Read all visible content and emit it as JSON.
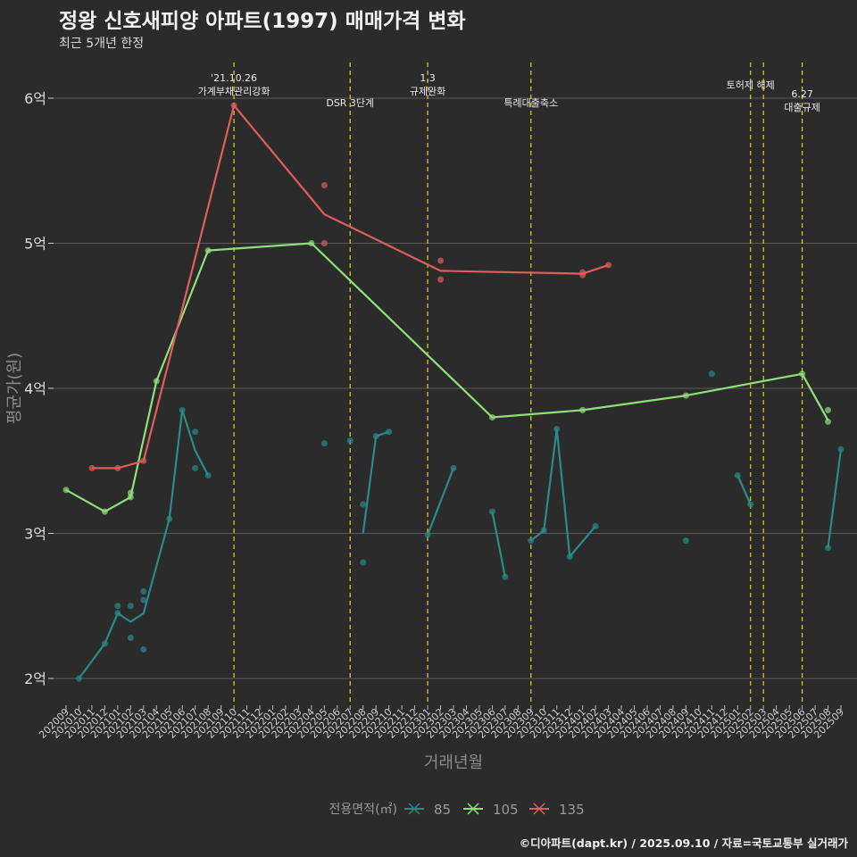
{
  "title": "정왕 신호새피양 아파트(1997) 매매가격 변화",
  "subtitle": "최근 5개년 한정",
  "caption": "©디아파트(dapt.kr) / 2025.09.10 / 자료=국토교통부 실거래가",
  "colors": {
    "background": "#2b2b2b",
    "s85": "#2a8a8a",
    "s105": "#90e07a",
    "s135": "#e05d5d",
    "event": "#d8d81e",
    "grid": "#5a5a5a"
  },
  "chart_data": {
    "type": "line",
    "title": "정왕 신호새피양 아파트(1997) 매매가격 변화",
    "xlabel": "거래년월",
    "ylabel": "평균가(원)",
    "ylim": [
      1.8,
      6.3
    ],
    "y_ticks": [
      2,
      3,
      4,
      5,
      6
    ],
    "y_tick_labels": [
      "2억",
      "3억",
      "4억",
      "5억",
      "6억"
    ],
    "x": [
      "202009",
      "202010",
      "202011",
      "202012",
      "202101",
      "202102",
      "202103",
      "202104",
      "202105",
      "202106",
      "202107",
      "202108",
      "202109",
      "202110",
      "202111",
      "202112",
      "202201",
      "202202",
      "202203",
      "202204",
      "202205",
      "202206",
      "202207",
      "202208",
      "202209",
      "202210",
      "202211",
      "202212",
      "202301",
      "202302",
      "202303",
      "202304",
      "202305",
      "202306",
      "202307",
      "202308",
      "202309",
      "202310",
      "202311",
      "202312",
      "202401",
      "202402",
      "202403",
      "202404",
      "202405",
      "202406",
      "202407",
      "202408",
      "202409",
      "202410",
      "202411",
      "202412",
      "202501",
      "202502",
      "202503",
      "202504",
      "202505",
      "202506",
      "202507",
      "202508",
      "202509"
    ],
    "legend_title": "전용면적(㎡)",
    "series": [
      {
        "name": "85",
        "color_key": "s85",
        "line": [
          [
            "202010",
            2.0
          ],
          [
            "202012",
            2.24
          ],
          [
            "202101",
            2.45
          ],
          [
            "202102",
            2.39
          ],
          [
            "202103",
            2.45
          ],
          [
            "202105",
            3.1
          ],
          [
            "202106",
            3.85
          ],
          [
            "202107",
            3.57
          ],
          [
            "202108",
            3.4
          ],
          null,
          [
            "202208",
            3.0
          ],
          [
            "202209",
            3.67
          ],
          [
            "202210",
            3.7
          ],
          null,
          [
            "202301",
            2.99
          ],
          [
            "202303",
            3.45
          ],
          null,
          [
            "202306",
            3.15
          ],
          [
            "202307",
            2.7
          ],
          null,
          [
            "202309",
            2.95
          ],
          [
            "202310",
            3.02
          ],
          [
            "202311",
            3.72
          ],
          [
            "202312",
            2.84
          ],
          [
            "202402",
            3.05
          ],
          null,
          [
            "202501",
            3.4
          ],
          [
            "202502",
            3.2
          ],
          null,
          [
            "202508",
            2.9
          ],
          [
            "202509",
            3.58
          ]
        ],
        "points": [
          [
            "202010",
            2.0
          ],
          [
            "202012",
            2.24
          ],
          [
            "202101",
            2.5
          ],
          [
            "202101",
            2.45
          ],
          [
            "202102",
            2.5
          ],
          [
            "202102",
            2.28
          ],
          [
            "202103",
            2.6
          ],
          [
            "202103",
            2.54
          ],
          [
            "202103",
            2.2
          ],
          [
            "202105",
            3.1
          ],
          [
            "202106",
            3.85
          ],
          [
            "202107",
            3.7
          ],
          [
            "202107",
            3.45
          ],
          [
            "202108",
            3.4
          ],
          [
            "202205",
            3.62
          ],
          [
            "202207",
            3.64
          ],
          [
            "202208",
            3.2
          ],
          [
            "202208",
            2.8
          ],
          [
            "202209",
            3.67
          ],
          [
            "202210",
            3.7
          ],
          [
            "202301",
            2.99
          ],
          [
            "202303",
            3.45
          ],
          [
            "202306",
            3.15
          ],
          [
            "202307",
            2.7
          ],
          [
            "202309",
            2.95
          ],
          [
            "202310",
            3.02
          ],
          [
            "202311",
            3.72
          ],
          [
            "202312",
            2.84
          ],
          [
            "202402",
            3.05
          ],
          [
            "202409",
            2.95
          ],
          [
            "202411",
            4.1
          ],
          [
            "202501",
            3.4
          ],
          [
            "202502",
            3.2
          ],
          [
            "202508",
            2.9
          ],
          [
            "202509",
            3.58
          ]
        ]
      },
      {
        "name": "105",
        "color_key": "s105",
        "line": [
          [
            "202009",
            3.3
          ],
          [
            "202012",
            3.15
          ],
          [
            "202102",
            3.25
          ],
          [
            "202104",
            4.05
          ],
          [
            "202108",
            4.95
          ],
          [
            "202204",
            5.0
          ],
          [
            "202306",
            3.8
          ],
          [
            "202401",
            3.85
          ],
          [
            "202409",
            3.95
          ],
          [
            "202506",
            4.1
          ],
          [
            "202508",
            3.78
          ]
        ],
        "points": [
          [
            "202009",
            3.3
          ],
          [
            "202012",
            3.15
          ],
          [
            "202102",
            3.25
          ],
          [
            "202102",
            3.28
          ],
          [
            "202104",
            4.05
          ],
          [
            "202108",
            4.95
          ],
          [
            "202204",
            5.0
          ],
          [
            "202306",
            3.8
          ],
          [
            "202401",
            3.85
          ],
          [
            "202409",
            3.95
          ],
          [
            "202506",
            4.1
          ],
          [
            "202508",
            3.85
          ],
          [
            "202508",
            3.77
          ]
        ]
      },
      {
        "name": "135",
        "color_key": "s135",
        "line": [
          [
            "202011",
            3.45
          ],
          [
            "202101",
            3.45
          ],
          [
            "202103",
            3.5
          ],
          [
            "202110",
            5.95
          ],
          [
            "202205",
            5.2
          ],
          [
            "202302",
            4.81
          ],
          [
            "202401",
            4.79
          ],
          [
            "202403",
            4.85
          ]
        ],
        "points": [
          [
            "202011",
            3.45
          ],
          [
            "202101",
            3.45
          ],
          [
            "202103",
            3.5
          ],
          [
            "202110",
            5.95
          ],
          [
            "202205",
            5.4
          ],
          [
            "202205",
            5.0
          ],
          [
            "202302",
            4.88
          ],
          [
            "202302",
            4.75
          ],
          [
            "202401",
            4.8
          ],
          [
            "202401",
            4.78
          ],
          [
            "202403",
            4.85
          ]
        ]
      }
    ],
    "events": [
      {
        "x": "202110",
        "lines": [
          "'21.10.26",
          "가계부채관리강화"
        ],
        "row": 0
      },
      {
        "x": "202207",
        "lines": [
          "DSR 3단계"
        ],
        "row": 2
      },
      {
        "x": "202301",
        "lines": [
          "1.3",
          "규제완화"
        ],
        "row": 0
      },
      {
        "x": "202309",
        "lines": [
          "특례대출축소"
        ],
        "row": 2
      },
      {
        "x": "202502",
        "lines": [
          "토허제 해제"
        ],
        "row": 1
      },
      {
        "x": "202503",
        "lines": [],
        "row": 1
      },
      {
        "x": "202506",
        "lines": [
          "6.27",
          "대출규제"
        ],
        "row": 3
      }
    ]
  }
}
